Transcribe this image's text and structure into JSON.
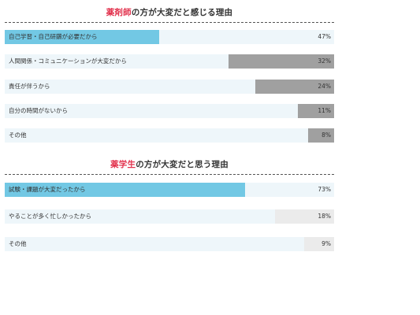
{
  "chart_data": [
    {
      "type": "bar",
      "title_highlight": "薬剤師",
      "title_rest": "の方が大変だと感じる理由",
      "categories": [
        "自己学習・自己研鑽が必要だから",
        "人間関係・コミュニケーションが大変だから",
        "責任が伴うから",
        "自分の時間がないから",
        "その他"
      ],
      "values": [
        47,
        32,
        24,
        11,
        8
      ],
      "value_labels": [
        "47%",
        "32%",
        "24%",
        "11%",
        "8%"
      ],
      "xlim": [
        0,
        100
      ],
      "colors": {
        "accent": "#72c8e4",
        "bar": "#a0a0a0",
        "track": "#eef6fa"
      }
    },
    {
      "type": "bar",
      "title_highlight": "薬学生",
      "title_rest": "の方が大変だと思う理由",
      "categories": [
        "試験・課題が大変だったから",
        "やることが多く忙しかったから",
        "その他"
      ],
      "values": [
        73,
        18,
        9
      ],
      "value_labels": [
        "73%",
        "18%",
        "9%"
      ],
      "xlim": [
        0,
        100
      ],
      "colors": {
        "accent": "#72c8e4",
        "bar": "#ebebeb",
        "track": "#eef6fa"
      }
    }
  ],
  "colors": {
    "title_highlight": "#e2334e",
    "rule": "#555555"
  }
}
